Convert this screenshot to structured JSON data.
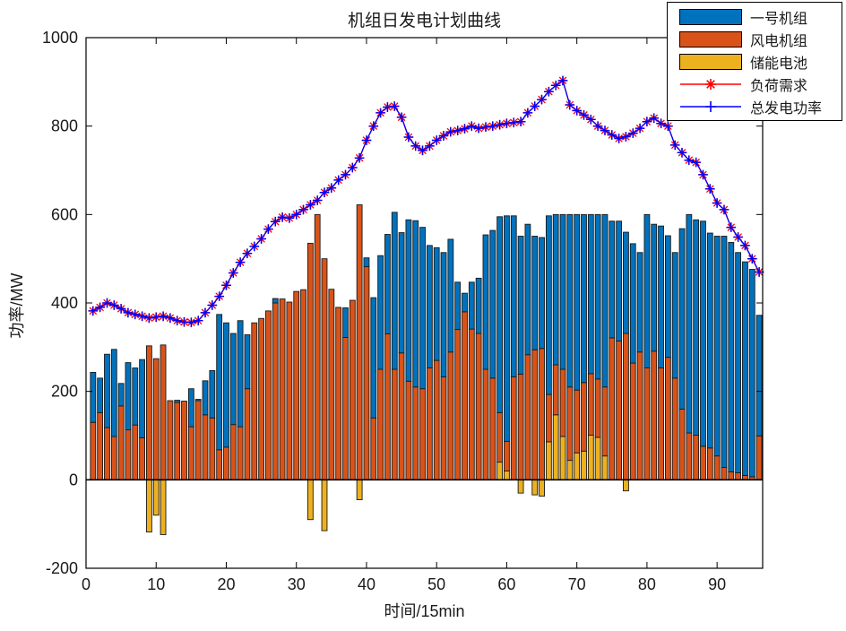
{
  "figure": {
    "title": "机组日发电计划曲线",
    "xlabel": "时间/15min",
    "ylabel": "功率/MW"
  },
  "legend": {
    "position": "top-right",
    "entries": [
      {
        "label": "一号机组",
        "type": "bar",
        "color": "#0072BD"
      },
      {
        "label": "风电机组",
        "type": "bar",
        "color": "#D95319"
      },
      {
        "label": "储能电池",
        "type": "bar",
        "color": "#EDB120"
      },
      {
        "label": "负荷需求",
        "type": "line",
        "color": "#FF0000",
        "marker": "asterisk"
      },
      {
        "label": "总发电功率",
        "type": "line",
        "color": "#0000FF",
        "marker": "plus"
      }
    ]
  },
  "chart_data": {
    "type": "bar",
    "subtype": "stacked-bars-with-lines",
    "title": "机组日发电计划曲线",
    "xlabel": "时间/15min",
    "ylabel": "功率/MW",
    "xlim": [
      0,
      97
    ],
    "ylim": [
      -200,
      1000
    ],
    "xticks": [
      0,
      10,
      20,
      30,
      40,
      50,
      60,
      70,
      80,
      90
    ],
    "yticks": [
      -200,
      0,
      200,
      400,
      600,
      800,
      1000
    ],
    "grid": false,
    "x_step": 1,
    "x_count": 96,
    "stack_order_bottom_to_top": [
      "储能电池",
      "风电机组",
      "一号机组"
    ],
    "series": [
      {
        "name": "一号机组",
        "type": "bar",
        "color": "#0072BD",
        "values": [
          113,
          78,
          166,
          197,
          51,
          152,
          129,
          177,
          0,
          0,
          0,
          0,
          5,
          0,
          86,
          3,
          77,
          107,
          306,
          281,
          206,
          240,
          122,
          0,
          0,
          0,
          10,
          0,
          0,
          0,
          0,
          0,
          0,
          0,
          0,
          0,
          67,
          0,
          0,
          20,
          272,
          257,
          225,
          355,
          272,
          365,
          376,
          365,
          277,
          255,
          281,
          255,
          107,
          42,
          106,
          125,
          304,
          334,
          443,
          510,
          364,
          312,
          295,
          257,
          251,
          404,
          340,
          350,
          390,
          397,
          380,
          360,
          372,
          390,
          264,
          271,
          229,
          270,
          225,
          347,
          287,
          321,
          275,
          284,
          408,
          494,
          487,
          509,
          486,
          497,
          523,
          519,
          498,
          483,
          469,
          273
        ]
      },
      {
        "name": "风电机组",
        "type": "bar",
        "color": "#D95319",
        "values": [
          130,
          152,
          118,
          98,
          167,
          113,
          124,
          95,
          303,
          274,
          305,
          179,
          175,
          178,
          120,
          179,
          147,
          140,
          68,
          74,
          125,
          120,
          206,
          355,
          365,
          382,
          400,
          409,
          402,
          426,
          430,
          535,
          600,
          500,
          431,
          390,
          322,
          406,
          622,
          482,
          140,
          250,
          330,
          250,
          287,
          223,
          210,
          206,
          253,
          270,
          233,
          289,
          340,
          380,
          341,
          331,
          250,
          230,
          112,
          67,
          233,
          239,
          283,
          294,
          297,
          107,
          113,
          152,
          166,
          142,
          155,
          139,
          132,
          156,
          321,
          314,
          331,
          264,
          289,
          253,
          291,
          253,
          277,
          230,
          160,
          106,
          101,
          76,
          72,
          54,
          28,
          18,
          16,
          10,
          7,
          99
        ]
      },
      {
        "name": "储能电池",
        "type": "bar",
        "color": "#EDB120",
        "values": [
          0,
          0,
          0,
          0,
          0,
          0,
          0,
          0,
          -118,
          -80,
          -124,
          0,
          0,
          0,
          0,
          0,
          0,
          0,
          0,
          0,
          0,
          0,
          0,
          0,
          0,
          0,
          0,
          0,
          0,
          0,
          0,
          -90,
          0,
          -115,
          0,
          0,
          0,
          0,
          -45,
          0,
          0,
          0,
          0,
          0,
          0,
          0,
          0,
          0,
          0,
          0,
          0,
          0,
          0,
          0,
          0,
          0,
          0,
          0,
          40,
          20,
          0,
          -30,
          0,
          -34,
          -37,
          86,
          147,
          98,
          44,
          61,
          65,
          101,
          96,
          54,
          0,
          0,
          -25,
          0,
          0,
          0,
          0,
          0,
          0,
          0,
          0,
          0,
          0,
          0,
          0,
          0,
          0,
          0,
          0,
          0,
          0,
          0
        ]
      },
      {
        "name": "负荷需求",
        "type": "line",
        "color": "#FF0000",
        "marker": "asterisk",
        "values": [
          382,
          390,
          400,
          395,
          387,
          378,
          374,
          370,
          366,
          368,
          370,
          366,
          360,
          357,
          356,
          360,
          378,
          395,
          415,
          440,
          468,
          492,
          512,
          528,
          545,
          567,
          584,
          594,
          592,
          600,
          611,
          622,
          632,
          650,
          660,
          678,
          690,
          706,
          728,
          768,
          800,
          830,
          843,
          845,
          820,
          775,
          755,
          745,
          755,
          768,
          778,
          787,
          790,
          794,
          800,
          795,
          798,
          800,
          803,
          806,
          808,
          810,
          830,
          845,
          860,
          878,
          892,
          903,
          848,
          835,
          825,
          815,
          800,
          790,
          780,
          772,
          776,
          784,
          795,
          810,
          818,
          806,
          800,
          757,
          740,
          723,
          718,
          690,
          658,
          626,
          611,
          571,
          549,
          530,
          500,
          470
        ]
      },
      {
        "name": "总发电功率",
        "type": "line",
        "color": "#0000FF",
        "marker": "plus",
        "values": [
          382,
          390,
          400,
          395,
          387,
          378,
          374,
          370,
          366,
          368,
          370,
          366,
          360,
          357,
          356,
          360,
          378,
          395,
          415,
          440,
          468,
          492,
          512,
          528,
          545,
          567,
          584,
          594,
          592,
          600,
          611,
          622,
          632,
          650,
          660,
          678,
          690,
          706,
          728,
          768,
          800,
          830,
          843,
          845,
          820,
          775,
          755,
          745,
          755,
          768,
          778,
          787,
          790,
          794,
          800,
          795,
          798,
          800,
          803,
          806,
          808,
          810,
          830,
          845,
          860,
          878,
          892,
          903,
          848,
          835,
          825,
          815,
          800,
          790,
          780,
          772,
          776,
          784,
          795,
          810,
          818,
          806,
          800,
          757,
          740,
          723,
          718,
          690,
          658,
          626,
          611,
          571,
          549,
          530,
          500,
          470
        ]
      }
    ]
  }
}
